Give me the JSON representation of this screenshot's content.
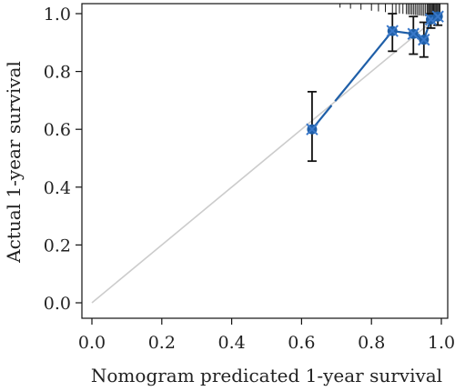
{
  "chart_data": {
    "type": "scatter",
    "title": "",
    "xlabel": "Nomogram predicated 1-year survival",
    "ylabel": "Actual 1-year survival",
    "xlim": [
      0.0,
      1.0
    ],
    "ylim": [
      0.0,
      1.0
    ],
    "x_ticks": [
      "0.0",
      "0.2",
      "0.4",
      "0.6",
      "0.8",
      "1.0"
    ],
    "y_ticks": [
      "0.0",
      "0.2",
      "0.4",
      "0.6",
      "0.8",
      "1.0"
    ],
    "grid": false,
    "legend": "none",
    "reference_line": {
      "from": [
        0.0,
        0.0
      ],
      "to": [
        1.0,
        1.0
      ],
      "color": "#cccccc"
    },
    "series": [
      {
        "points": [
          {
            "x": 0.63,
            "y": 0.6,
            "lo": 0.49,
            "hi": 0.73
          },
          {
            "x": 0.86,
            "y": 0.94,
            "lo": 0.87,
            "hi": 1.0
          },
          {
            "x": 0.92,
            "y": 0.93,
            "lo": 0.86,
            "hi": 0.99
          },
          {
            "x": 0.95,
            "y": 0.91,
            "lo": 0.85,
            "hi": 0.97
          },
          {
            "x": 0.97,
            "y": 0.98,
            "lo": 0.95,
            "hi": 1.0
          },
          {
            "x": 0.99,
            "y": 0.99,
            "lo": 0.96,
            "hi": 1.0
          }
        ],
        "color": "#1f5fa8",
        "errorbar_color": "#111111"
      }
    ],
    "rug_x": [
      0.71,
      0.74,
      0.77,
      0.8,
      0.82,
      0.84,
      0.86,
      0.87,
      0.88,
      0.89,
      0.9,
      0.905,
      0.91,
      0.915,
      0.92,
      0.925,
      0.93,
      0.935,
      0.94,
      0.945,
      0.95,
      0.955,
      0.96,
      0.963,
      0.966,
      0.969,
      0.972,
      0.975,
      0.978,
      0.981,
      0.984,
      0.987,
      0.99,
      0.993,
      0.996
    ]
  }
}
